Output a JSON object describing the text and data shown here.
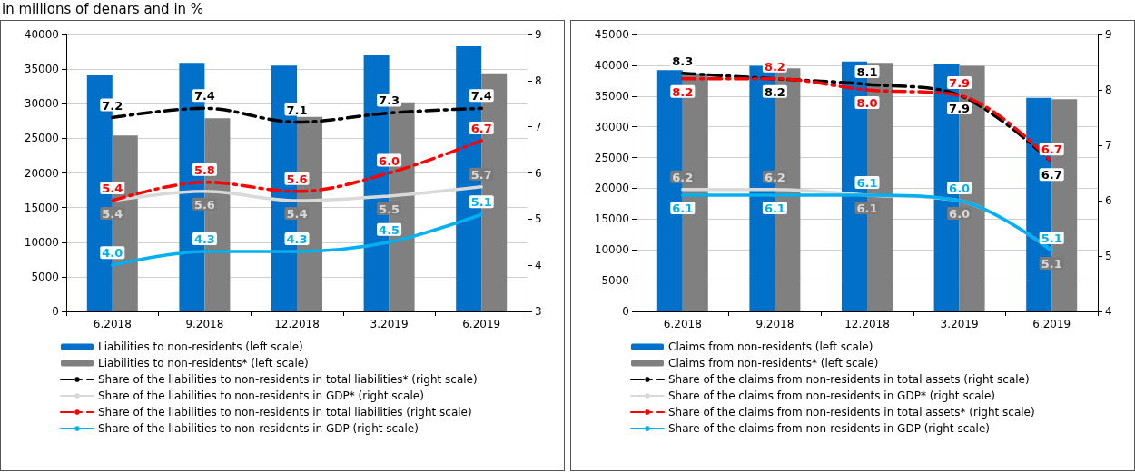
{
  "chart_data": [
    {
      "type": "bar",
      "title": "in millions of denars and in %",
      "categories": [
        "6.2018",
        "9.2018",
        "12.2018",
        "3.2019",
        "6.2019"
      ],
      "ylim": [
        0,
        40000
      ],
      "yticks": [
        0,
        5000,
        10000,
        15000,
        20000,
        25000,
        30000,
        35000,
        40000
      ],
      "y2lim": [
        3,
        9
      ],
      "y2ticks": [
        3,
        4,
        5,
        6,
        7,
        8,
        9
      ],
      "grid": "y",
      "legend": "bottom",
      "series": [
        {
          "name": "Liabilities to non-residents (left scale)",
          "color": "#0070c8",
          "values": [
            34100,
            35900,
            35500,
            37000,
            38300
          ]
        },
        {
          "name": "Liabilities to non-residents* (left scale)",
          "color": "#808080",
          "values": [
            25400,
            27900,
            28100,
            30200,
            34400
          ]
        },
        {
          "type": "line",
          "axis": "y2",
          "line_style": "dashed",
          "name": "Share of the liabilities to non-residents in total liabilities* (right scale)",
          "color": "#000000",
          "values": [
            7.2,
            7.4,
            7.1,
            7.3,
            7.4
          ],
          "value_labels": [
            "7.2",
            "7.4",
            "7.1",
            "7.3",
            "7.4"
          ]
        },
        {
          "type": "line",
          "axis": "y2",
          "line_style": "solid",
          "name": "Share of the liabilities to non-residents in GDP* (right scale)",
          "color": "#d9d9d9",
          "values": [
            5.4,
            5.6,
            5.4,
            5.5,
            5.7
          ],
          "value_labels": [
            "5.4",
            "5.6",
            "5.4",
            "5.5",
            "5.7"
          ]
        },
        {
          "type": "line",
          "axis": "y2",
          "line_style": "dashed",
          "name": "Share of the liabilities to non-residents in total liabilities (right scale)",
          "color": "#ff0000",
          "values": [
            5.4,
            5.8,
            5.6,
            6.0,
            6.7
          ],
          "value_labels": [
            "5.4",
            "5.8",
            "5.6",
            "6.0",
            "6.7"
          ]
        },
        {
          "type": "line",
          "axis": "y2",
          "line_style": "solid",
          "name": "Share of the liabilities to non-residents in GDP (right scale)",
          "color": "#00b0f0",
          "values": [
            4.0,
            4.3,
            4.3,
            4.5,
            5.1
          ],
          "value_labels": [
            "4.0",
            "4.3",
            "4.3",
            "4.5",
            "5.1"
          ]
        }
      ]
    },
    {
      "type": "bar",
      "categories": [
        "6.2018",
        "9.2018",
        "12.2018",
        "3.2019",
        "6.2019"
      ],
      "ylim": [
        0,
        45000
      ],
      "yticks": [
        0,
        5000,
        10000,
        15000,
        20000,
        25000,
        30000,
        35000,
        40000,
        45000
      ],
      "y2lim": [
        4,
        9
      ],
      "y2ticks": [
        4,
        5,
        6,
        7,
        8,
        9
      ],
      "grid": "y",
      "legend": "bottom",
      "series": [
        {
          "name": "Claims from non-residents (left scale)",
          "color": "#0070c8",
          "values": [
            39200,
            39900,
            40600,
            40200,
            34700
          ]
        },
        {
          "name": "Claims from non-residents* (left scale)",
          "color": "#808080",
          "values": [
            38700,
            39500,
            40400,
            39900,
            34500
          ]
        },
        {
          "type": "line",
          "axis": "y2",
          "line_style": "dashed",
          "name": "Share of the claims from non-residents in total assets (right scale)",
          "color": "#000000",
          "values": [
            8.3,
            8.2,
            8.1,
            7.9,
            6.7
          ],
          "value_labels": [
            "8.3",
            "8.2",
            "8.1",
            "7.9",
            "6.7"
          ]
        },
        {
          "type": "line",
          "axis": "y2",
          "line_style": "solid",
          "name": "Share of the claims from non-residents in GDP* (right scale)",
          "color": "#d9d9d9",
          "values": [
            6.2,
            6.2,
            6.1,
            6.0,
            5.1
          ],
          "value_labels": [
            "6.2",
            "6.2",
            "6.1",
            "6.0",
            "5.1"
          ]
        },
        {
          "type": "line",
          "axis": "y2",
          "line_style": "dashed",
          "name": "Share of the claims from non-residents in total assets* (right scale)",
          "color": "#ff0000",
          "values": [
            8.2,
            8.2,
            8.0,
            7.9,
            6.7
          ],
          "value_labels": [
            "8.2",
            "8.2",
            "8.0",
            "7.9",
            "6.7"
          ]
        },
        {
          "type": "line",
          "axis": "y2",
          "line_style": "solid",
          "name": "Share of the claims from non-residents in GDP (right scale)",
          "color": "#00b0f0",
          "values": [
            6.1,
            6.1,
            6.1,
            6.0,
            5.1
          ],
          "value_labels": [
            "6.1",
            "6.1",
            "6.1",
            "6.0",
            "5.1"
          ]
        }
      ]
    }
  ]
}
